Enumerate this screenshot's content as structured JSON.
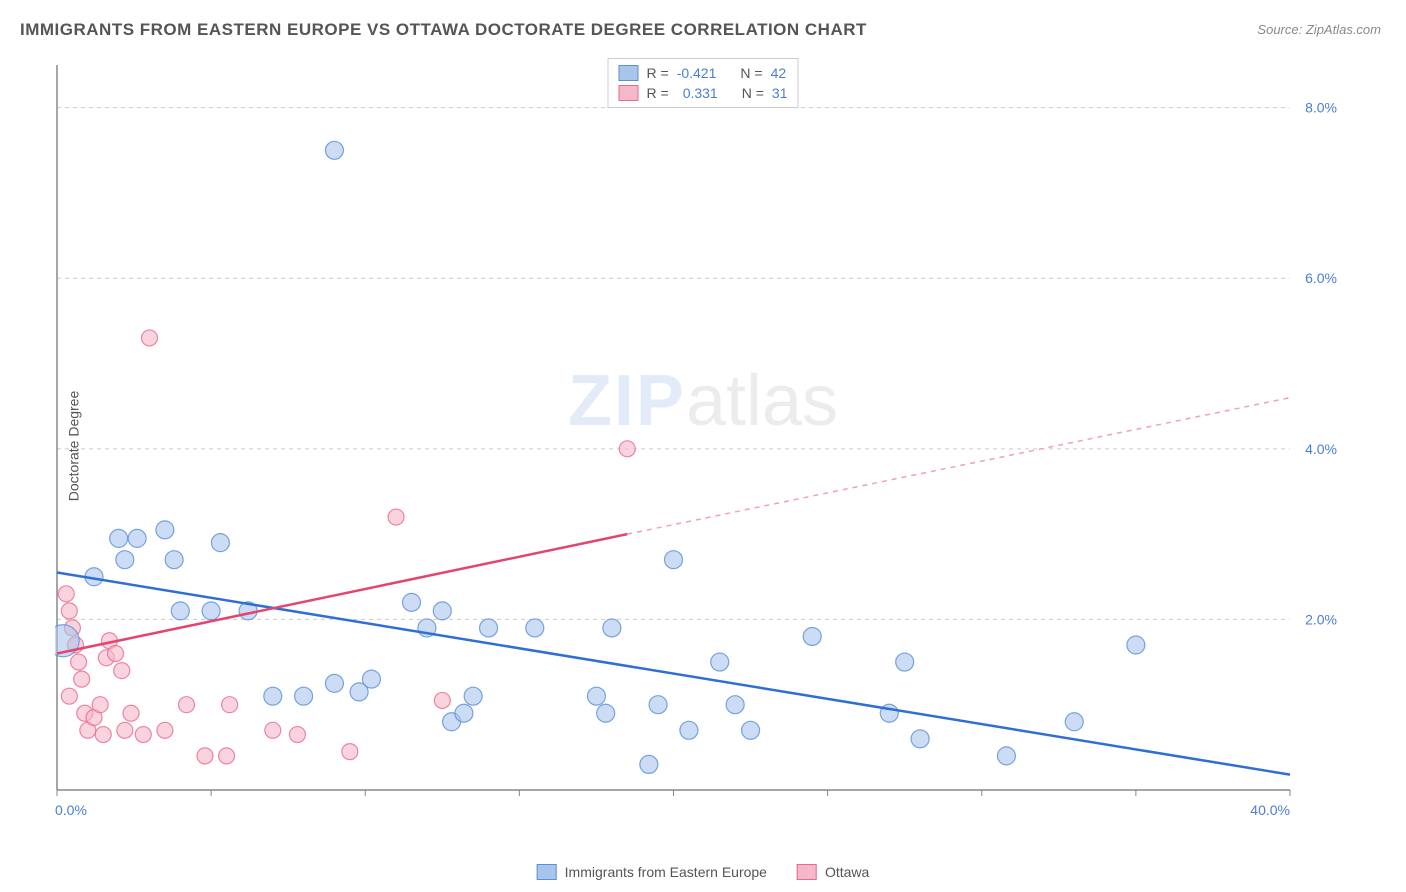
{
  "title": "IMMIGRANTS FROM EASTERN EUROPE VS OTTAWA DOCTORATE DEGREE CORRELATION CHART",
  "source_label": "Source:",
  "source_value": "ZipAtlas.com",
  "ylabel": "Doctorate Degree",
  "watermark": {
    "zip": "ZIP",
    "atlas": "atlas"
  },
  "chart": {
    "type": "scatter",
    "xlim": [
      0,
      40
    ],
    "ylim": [
      0,
      8.5
    ],
    "x_ticks": [
      0,
      5,
      10,
      15,
      20,
      25,
      30,
      35,
      40
    ],
    "x_tick_labels_shown": {
      "0": "0.0%",
      "40": "40.0%"
    },
    "y_ticks": [
      2,
      4,
      6,
      8
    ],
    "y_tick_labels": [
      "2.0%",
      "4.0%",
      "6.0%",
      "8.0%"
    ],
    "grid_color": "#cccccc",
    "axis_color": "#888888",
    "background_color": "#ffffff",
    "tick_label_color": "#4a7dd8",
    "series": [
      {
        "name": "Immigrants from Eastern Europe",
        "color_fill": "#a8c5ec",
        "color_stroke": "#5b8fd6",
        "opacity": 0.6,
        "marker_radius": 9,
        "R": "-0.421",
        "N": "42",
        "trend": {
          "x1": 0,
          "y1": 2.55,
          "x2": 40,
          "y2": 0.18,
          "color": "#2e6fd4",
          "width": 2.5
        },
        "points": [
          {
            "x": 0.2,
            "y": 1.75,
            "r": 16
          },
          {
            "x": 1.2,
            "y": 2.5,
            "r": 9
          },
          {
            "x": 2.0,
            "y": 2.95,
            "r": 9
          },
          {
            "x": 2.6,
            "y": 2.95,
            "r": 9
          },
          {
            "x": 2.2,
            "y": 2.7,
            "r": 9
          },
          {
            "x": 3.5,
            "y": 3.05,
            "r": 9
          },
          {
            "x": 3.8,
            "y": 2.7,
            "r": 9
          },
          {
            "x": 4.0,
            "y": 2.1,
            "r": 9
          },
          {
            "x": 5.3,
            "y": 2.9,
            "r": 9
          },
          {
            "x": 5.0,
            "y": 2.1,
            "r": 9
          },
          {
            "x": 6.2,
            "y": 2.1,
            "r": 9
          },
          {
            "x": 7.0,
            "y": 1.1,
            "r": 9
          },
          {
            "x": 8.0,
            "y": 1.1,
            "r": 9
          },
          {
            "x": 9.0,
            "y": 1.25,
            "r": 9
          },
          {
            "x": 9.8,
            "y": 1.15,
            "r": 9
          },
          {
            "x": 10.2,
            "y": 1.3,
            "r": 9
          },
          {
            "x": 9.0,
            "y": 7.5,
            "r": 9
          },
          {
            "x": 11.5,
            "y": 2.2,
            "r": 9
          },
          {
            "x": 12.0,
            "y": 1.9,
            "r": 9
          },
          {
            "x": 12.5,
            "y": 2.1,
            "r": 9
          },
          {
            "x": 12.8,
            "y": 0.8,
            "r": 9
          },
          {
            "x": 13.2,
            "y": 0.9,
            "r": 9
          },
          {
            "x": 13.5,
            "y": 1.1,
            "r": 9
          },
          {
            "x": 14.0,
            "y": 1.9,
            "r": 9
          },
          {
            "x": 15.5,
            "y": 1.9,
            "r": 9
          },
          {
            "x": 17.5,
            "y": 1.1,
            "r": 9
          },
          {
            "x": 18.0,
            "y": 1.9,
            "r": 9
          },
          {
            "x": 17.8,
            "y": 0.9,
            "r": 9
          },
          {
            "x": 19.5,
            "y": 1.0,
            "r": 9
          },
          {
            "x": 20.0,
            "y": 2.7,
            "r": 9
          },
          {
            "x": 20.5,
            "y": 0.7,
            "r": 9
          },
          {
            "x": 21.5,
            "y": 1.5,
            "r": 9
          },
          {
            "x": 22.0,
            "y": 1.0,
            "r": 9
          },
          {
            "x": 22.5,
            "y": 0.7,
            "r": 9
          },
          {
            "x": 24.5,
            "y": 1.8,
            "r": 9
          },
          {
            "x": 27.0,
            "y": 0.9,
            "r": 9
          },
          {
            "x": 27.5,
            "y": 1.5,
            "r": 9
          },
          {
            "x": 28.0,
            "y": 0.6,
            "r": 9
          },
          {
            "x": 30.8,
            "y": 0.4,
            "r": 9
          },
          {
            "x": 33.0,
            "y": 0.8,
            "r": 9
          },
          {
            "x": 35.0,
            "y": 1.7,
            "r": 9
          },
          {
            "x": 19.2,
            "y": 0.3,
            "r": 9
          }
        ]
      },
      {
        "name": "Ottawa",
        "color_fill": "#f5b8c9",
        "color_stroke": "#e86a8f",
        "opacity": 0.6,
        "marker_radius": 9,
        "R": "0.331",
        "N": "31",
        "trend": {
          "solid": {
            "x1": 0,
            "y1": 1.6,
            "x2": 18.5,
            "y2": 3.0,
            "color": "#e4456f",
            "width": 2.5
          },
          "dashed": {
            "x1": 18.5,
            "y1": 3.0,
            "x2": 40,
            "y2": 4.6,
            "color": "#f0a0b8",
            "width": 1.5
          }
        },
        "points": [
          {
            "x": 0.3,
            "y": 2.3,
            "r": 8
          },
          {
            "x": 0.4,
            "y": 2.1,
            "r": 8
          },
          {
            "x": 0.5,
            "y": 1.9,
            "r": 8
          },
          {
            "x": 0.6,
            "y": 1.7,
            "r": 8
          },
          {
            "x": 0.7,
            "y": 1.5,
            "r": 8
          },
          {
            "x": 0.8,
            "y": 1.3,
            "r": 8
          },
          {
            "x": 0.4,
            "y": 1.1,
            "r": 8
          },
          {
            "x": 0.9,
            "y": 0.9,
            "r": 8
          },
          {
            "x": 1.0,
            "y": 0.7,
            "r": 8
          },
          {
            "x": 1.2,
            "y": 0.85,
            "r": 8
          },
          {
            "x": 1.4,
            "y": 1.0,
            "r": 8
          },
          {
            "x": 1.5,
            "y": 0.65,
            "r": 8
          },
          {
            "x": 1.6,
            "y": 1.55,
            "r": 8
          },
          {
            "x": 1.7,
            "y": 1.75,
            "r": 8
          },
          {
            "x": 1.9,
            "y": 1.6,
            "r": 8
          },
          {
            "x": 2.1,
            "y": 1.4,
            "r": 8
          },
          {
            "x": 2.2,
            "y": 0.7,
            "r": 8
          },
          {
            "x": 2.4,
            "y": 0.9,
            "r": 8
          },
          {
            "x": 2.8,
            "y": 0.65,
            "r": 8
          },
          {
            "x": 3.0,
            "y": 5.3,
            "r": 8
          },
          {
            "x": 3.5,
            "y": 0.7,
            "r": 8
          },
          {
            "x": 4.2,
            "y": 1.0,
            "r": 8
          },
          {
            "x": 4.8,
            "y": 0.4,
            "r": 8
          },
          {
            "x": 5.5,
            "y": 0.4,
            "r": 8
          },
          {
            "x": 5.6,
            "y": 1.0,
            "r": 8
          },
          {
            "x": 7.0,
            "y": 0.7,
            "r": 8
          },
          {
            "x": 7.8,
            "y": 0.65,
            "r": 8
          },
          {
            "x": 9.5,
            "y": 0.45,
            "r": 8
          },
          {
            "x": 11.0,
            "y": 3.2,
            "r": 8
          },
          {
            "x": 12.5,
            "y": 1.05,
            "r": 8
          },
          {
            "x": 18.5,
            "y": 4.0,
            "r": 8
          }
        ]
      }
    ]
  },
  "legend_top": {
    "R_label": "R =",
    "N_label": "N ="
  },
  "legend_bottom": {
    "series1_label": "Immigrants from Eastern Europe",
    "series2_label": "Ottawa"
  }
}
